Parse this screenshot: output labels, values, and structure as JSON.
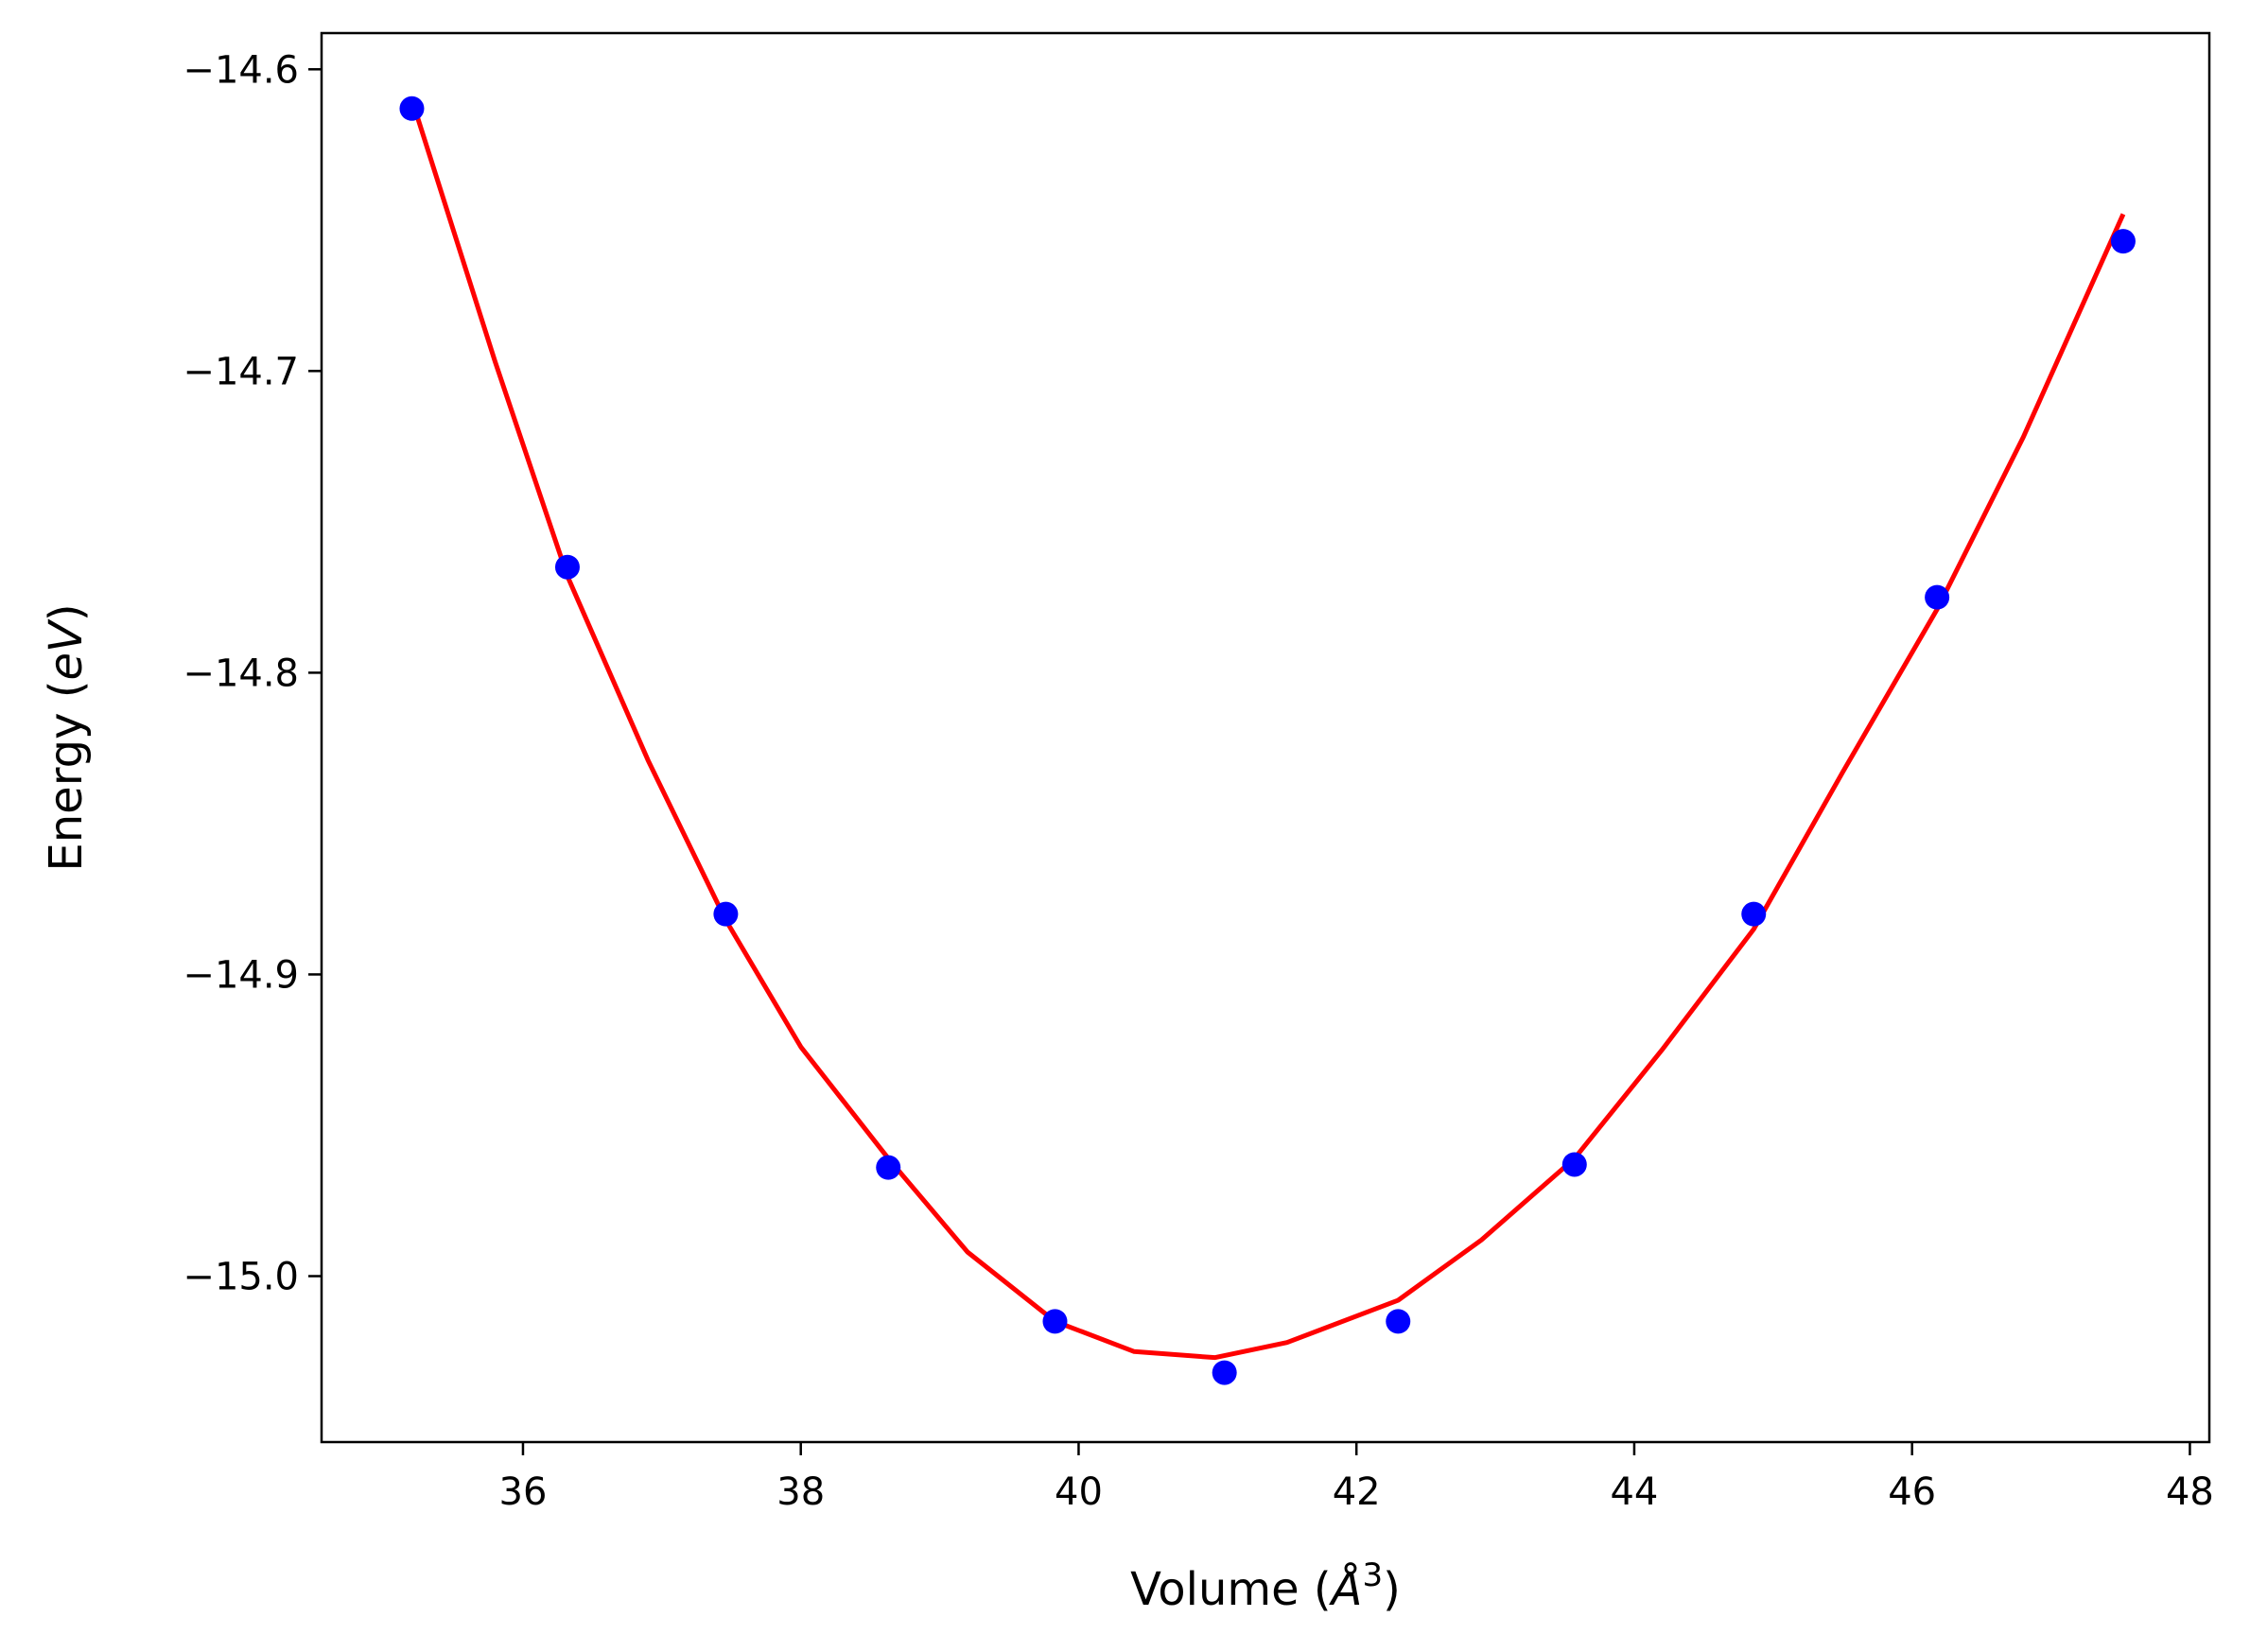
{
  "chart_data": {
    "type": "scatter",
    "title": "",
    "xlabel": "Volume",
    "xlabel_unit": "Å",
    "xlabel_unit_power": "3",
    "ylabel": "Energy",
    "ylabel_unit": "eV",
    "xlim": [
      34.55,
      48.14
    ],
    "ylim": [
      -15.055,
      -14.588
    ],
    "xticks": [
      36,
      38,
      40,
      42,
      44,
      46,
      48
    ],
    "yticks": [
      -14.6,
      -14.7,
      -14.8,
      -14.9,
      -15.0
    ],
    "xtick_labels": [
      "36",
      "38",
      "40",
      "42",
      "44",
      "46",
      "48"
    ],
    "ytick_labels": [
      "−14.6",
      "−14.7",
      "−14.8",
      "−14.9",
      "−15.0"
    ],
    "grid": false,
    "legend": "none",
    "series": [
      {
        "kind": "points",
        "color": "#0000ff",
        "x": [
          35.2,
          36.32,
          37.46,
          38.63,
          39.83,
          41.05,
          42.3,
          43.57,
          44.86,
          46.18,
          47.52
        ],
        "y": [
          -14.613,
          -14.765,
          -14.88,
          -14.964,
          -15.015,
          -15.032,
          -15.015,
          -14.963,
          -14.88,
          -14.775,
          -14.657
        ]
      },
      {
        "kind": "line",
        "color": "#ff0000",
        "x": [
          35.2,
          35.8,
          36.32,
          36.9,
          37.46,
          38.0,
          38.63,
          39.2,
          39.83,
          40.4,
          40.98,
          41.5,
          42.3,
          42.9,
          43.57,
          44.2,
          44.86,
          45.5,
          46.18,
          46.8,
          47.52
        ],
        "y": [
          -14.61,
          -14.697,
          -14.768,
          -14.829,
          -14.882,
          -14.924,
          -14.961,
          -14.992,
          -15.015,
          -15.025,
          -15.027,
          -15.022,
          -15.008,
          -14.988,
          -14.961,
          -14.925,
          -14.885,
          -14.833,
          -14.779,
          -14.722,
          -14.648
        ]
      }
    ]
  }
}
